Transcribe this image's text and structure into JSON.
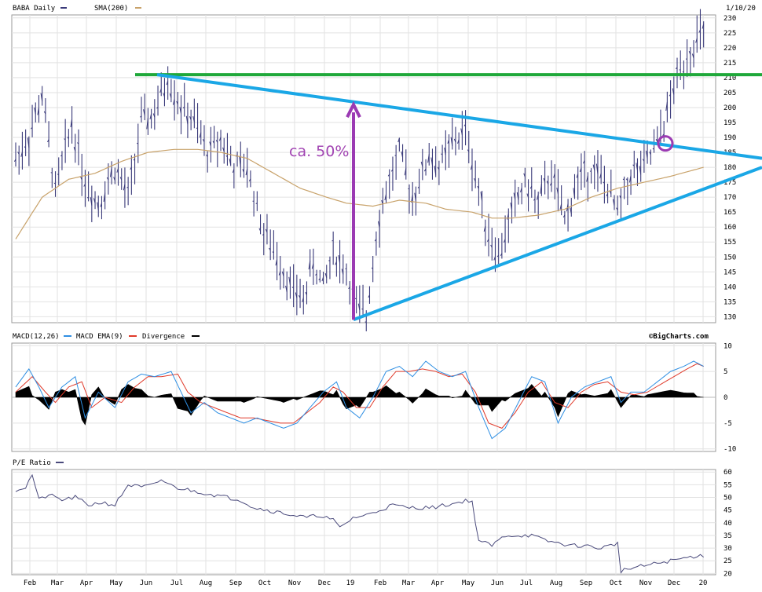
{
  "chart_data": [
    {
      "type": "ohlc",
      "panel": "price",
      "symbol_label": "BABA Daily",
      "sma_label": "SMA(200)",
      "date_label": "1/10/20",
      "y_ticks": [
        130,
        135,
        140,
        145,
        150,
        155,
        160,
        165,
        170,
        175,
        180,
        185,
        190,
        195,
        200,
        205,
        210,
        215,
        220,
        225,
        230
      ],
      "ylim": [
        128,
        231
      ],
      "x_ticks": [
        "Feb",
        "Mar",
        "Apr",
        "May",
        "Jun",
        "Jul",
        "Aug",
        "Sep",
        "Oct",
        "Nov",
        "Dec",
        "19",
        "Feb",
        "Mar",
        "Apr",
        "May",
        "Jun",
        "Jul",
        "Aug",
        "Sep",
        "Oct",
        "Nov",
        "Dec",
        "20"
      ],
      "colors": {
        "price": "#3a3a7a",
        "sma": "#c8a26a",
        "resistance": "#1aa7e6",
        "support": "#1aa7e6",
        "horizontal": "#1fa83a",
        "arrow": "#9b3ab3",
        "circle": "#9b3ab3"
      },
      "close_anchors": [
        [
          0,
          183
        ],
        [
          4,
          190
        ],
        [
          8,
          204
        ],
        [
          12,
          172
        ],
        [
          17,
          195
        ],
        [
          21,
          175
        ],
        [
          25,
          168
        ],
        [
          30,
          180
        ],
        [
          34,
          170
        ],
        [
          38,
          195
        ],
        [
          42,
          198
        ],
        [
          46,
          210
        ],
        [
          50,
          200
        ],
        [
          54,
          195
        ],
        [
          58,
          185
        ],
        [
          62,
          190
        ],
        [
          66,
          180
        ],
        [
          70,
          180
        ],
        [
          75,
          158
        ],
        [
          80,
          148
        ],
        [
          84,
          138
        ],
        [
          87,
          136
        ],
        [
          90,
          148
        ],
        [
          93,
          140
        ],
        [
          96,
          152
        ],
        [
          100,
          145
        ],
        [
          103,
          133
        ],
        [
          106,
          130
        ],
        [
          109,
          158
        ],
        [
          112,
          172
        ],
        [
          116,
          185
        ],
        [
          120,
          170
        ],
        [
          125,
          184
        ],
        [
          128,
          180
        ],
        [
          132,
          188
        ],
        [
          136,
          192
        ],
        [
          140,
          172
        ],
        [
          143,
          158
        ],
        [
          146,
          150
        ],
        [
          150,
          165
        ],
        [
          154,
          175
        ],
        [
          158,
          168
        ],
        [
          162,
          178
        ],
        [
          166,
          162
        ],
        [
          170,
          176
        ],
        [
          174,
          180
        ],
        [
          178,
          175
        ],
        [
          182,
          165
        ],
        [
          186,
          178
        ],
        [
          190,
          180
        ],
        [
          194,
          188
        ],
        [
          197,
          198
        ],
        [
          200,
          210
        ],
        [
          203,
          218
        ],
        [
          206,
          222
        ],
        [
          208,
          225
        ]
      ],
      "sma_anchors": [
        [
          0,
          156
        ],
        [
          8,
          170
        ],
        [
          16,
          176
        ],
        [
          24,
          178
        ],
        [
          32,
          182
        ],
        [
          40,
          185
        ],
        [
          48,
          186
        ],
        [
          55,
          186
        ],
        [
          62,
          185
        ],
        [
          70,
          183
        ],
        [
          78,
          178
        ],
        [
          86,
          173
        ],
        [
          94,
          170
        ],
        [
          100,
          168
        ],
        [
          108,
          167
        ],
        [
          116,
          169
        ],
        [
          124,
          168
        ],
        [
          130,
          166
        ],
        [
          138,
          165
        ],
        [
          144,
          163
        ],
        [
          150,
          163
        ],
        [
          158,
          164
        ],
        [
          166,
          166
        ],
        [
          174,
          170
        ],
        [
          182,
          173
        ],
        [
          190,
          175
        ],
        [
          198,
          177
        ],
        [
          208,
          180
        ]
      ],
      "annotations": {
        "arrow_label": "ca. 50%",
        "horizontal_line": {
          "y": 211
        },
        "resistance_line": {
          "from": [
            "Jun",
            211
          ],
          "to": [
            "Jan 20",
            183
          ]
        },
        "support_line": {
          "from": [
            "19",
            129
          ],
          "to": [
            "Jan 20",
            180
          ]
        },
        "arrow": {
          "x": "19",
          "from": 129,
          "to": 201
        },
        "breakout_circle": {
          "x": "Dec",
          "y": 188
        }
      }
    },
    {
      "type": "line",
      "panel": "macd",
      "legend": [
        "MACD(12,26)",
        "MACD EMA(9)",
        "Divergence"
      ],
      "credit": "©BigCharts.com",
      "y_ticks": [
        10,
        5,
        0,
        -5,
        -10
      ],
      "ylim": [
        -10.5,
        10.5
      ],
      "colors": {
        "macd": "#2f8fe3",
        "ema": "#e03a2a",
        "divergence": "#000000"
      },
      "macd_anchors": [
        [
          0,
          2
        ],
        [
          4,
          5.5
        ],
        [
          7,
          2
        ],
        [
          10,
          -2
        ],
        [
          14,
          2
        ],
        [
          18,
          4
        ],
        [
          21,
          -4
        ],
        [
          25,
          1
        ],
        [
          30,
          -2
        ],
        [
          34,
          3
        ],
        [
          38,
          4.5
        ],
        [
          42,
          4
        ],
        [
          47,
          5
        ],
        [
          50,
          1
        ],
        [
          53,
          -3
        ],
        [
          57,
          -1
        ],
        [
          61,
          -3
        ],
        [
          65,
          -4
        ],
        [
          69,
          -5
        ],
        [
          73,
          -4
        ],
        [
          77,
          -5
        ],
        [
          81,
          -6
        ],
        [
          85,
          -5
        ],
        [
          89,
          -2
        ],
        [
          93,
          1
        ],
        [
          97,
          3
        ],
        [
          100,
          -2
        ],
        [
          104,
          -4
        ],
        [
          108,
          0
        ],
        [
          112,
          5
        ],
        [
          116,
          6
        ],
        [
          120,
          4
        ],
        [
          124,
          7
        ],
        [
          128,
          5
        ],
        [
          132,
          4
        ],
        [
          136,
          5
        ],
        [
          140,
          -2
        ],
        [
          144,
          -8
        ],
        [
          148,
          -6
        ],
        [
          152,
          -1
        ],
        [
          156,
          4
        ],
        [
          160,
          3
        ],
        [
          164,
          -5
        ],
        [
          168,
          0
        ],
        [
          172,
          2
        ],
        [
          176,
          3
        ],
        [
          180,
          4
        ],
        [
          183,
          -1
        ],
        [
          186,
          1
        ],
        [
          190,
          1
        ],
        [
          194,
          3
        ],
        [
          198,
          5
        ],
        [
          202,
          6
        ],
        [
          205,
          7
        ],
        [
          208,
          6
        ]
      ],
      "ema_anchors": [
        [
          0,
          1
        ],
        [
          5,
          4
        ],
        [
          9,
          1
        ],
        [
          12,
          -1
        ],
        [
          16,
          2
        ],
        [
          20,
          3
        ],
        [
          23,
          -2
        ],
        [
          27,
          0
        ],
        [
          32,
          -1
        ],
        [
          36,
          2
        ],
        [
          40,
          4
        ],
        [
          44,
          4
        ],
        [
          49,
          4.5
        ],
        [
          52,
          1
        ],
        [
          56,
          -1
        ],
        [
          60,
          -2
        ],
        [
          64,
          -3
        ],
        [
          68,
          -4
        ],
        [
          72,
          -4
        ],
        [
          76,
          -4.5
        ],
        [
          80,
          -5
        ],
        [
          84,
          -5
        ],
        [
          88,
          -3
        ],
        [
          92,
          -1
        ],
        [
          96,
          2
        ],
        [
          99,
          1
        ],
        [
          103,
          -2
        ],
        [
          107,
          -2
        ],
        [
          111,
          2
        ],
        [
          115,
          5
        ],
        [
          119,
          5
        ],
        [
          123,
          5.5
        ],
        [
          127,
          5
        ],
        [
          131,
          4
        ],
        [
          135,
          4.5
        ],
        [
          139,
          1
        ],
        [
          143,
          -5
        ],
        [
          147,
          -6
        ],
        [
          151,
          -3
        ],
        [
          155,
          1
        ],
        [
          159,
          3
        ],
        [
          163,
          -1
        ],
        [
          167,
          -2
        ],
        [
          171,
          1
        ],
        [
          175,
          2.5
        ],
        [
          179,
          3
        ],
        [
          183,
          1
        ],
        [
          187,
          0.5
        ],
        [
          191,
          1
        ],
        [
          195,
          2.5
        ],
        [
          199,
          4
        ],
        [
          203,
          5.5
        ],
        [
          206,
          6.5
        ],
        [
          208,
          6
        ]
      ]
    },
    {
      "type": "line",
      "panel": "pe",
      "legend": [
        "P/E Ratio"
      ],
      "y_ticks": [
        60,
        55,
        50,
        45,
        40,
        35,
        30,
        25,
        20
      ],
      "ylim": [
        19.5,
        61
      ],
      "x_ticks": [
        "Feb",
        "Mar",
        "Apr",
        "May",
        "Jun",
        "Jul",
        "Aug",
        "Sep",
        "Oct",
        "Nov",
        "Dec",
        "19",
        "Feb",
        "Mar",
        "Apr",
        "May",
        "Jun",
        "Jul",
        "Aug",
        "Sep",
        "Oct",
        "Nov",
        "Dec",
        "20"
      ],
      "colors": {
        "line": "#4a4a7c"
      },
      "pe_anchors": [
        [
          0,
          53
        ],
        [
          3,
          54
        ],
        [
          5,
          59
        ],
        [
          7,
          49
        ],
        [
          10,
          51
        ],
        [
          14,
          49
        ],
        [
          18,
          50
        ],
        [
          22,
          47
        ],
        [
          26,
          48
        ],
        [
          30,
          47
        ],
        [
          34,
          55
        ],
        [
          38,
          54
        ],
        [
          42,
          55
        ],
        [
          44,
          57
        ],
        [
          48,
          54
        ],
        [
          52,
          53
        ],
        [
          56,
          52
        ],
        [
          60,
          51
        ],
        [
          64,
          50
        ],
        [
          68,
          49
        ],
        [
          72,
          46
        ],
        [
          76,
          45
        ],
        [
          80,
          44
        ],
        [
          84,
          43
        ],
        [
          88,
          42
        ],
        [
          92,
          43
        ],
        [
          96,
          41
        ],
        [
          98,
          38
        ],
        [
          102,
          42
        ],
        [
          106,
          43
        ],
        [
          110,
          45
        ],
        [
          114,
          47
        ],
        [
          118,
          46
        ],
        [
          122,
          46
        ],
        [
          126,
          46
        ],
        [
          130,
          47
        ],
        [
          134,
          48
        ],
        [
          136,
          49
        ],
        [
          138,
          48
        ],
        [
          140,
          33
        ],
        [
          144,
          31
        ],
        [
          148,
          35
        ],
        [
          152,
          35
        ],
        [
          156,
          35
        ],
        [
          160,
          33
        ],
        [
          164,
          32
        ],
        [
          168,
          31
        ],
        [
          172,
          31
        ],
        [
          176,
          30
        ],
        [
          180,
          31
        ],
        [
          182,
          32
        ],
        [
          183,
          21
        ],
        [
          186,
          22
        ],
        [
          190,
          23
        ],
        [
          194,
          24
        ],
        [
          198,
          25
        ],
        [
          202,
          26
        ],
        [
          206,
          27
        ],
        [
          208,
          27
        ]
      ]
    }
  ]
}
